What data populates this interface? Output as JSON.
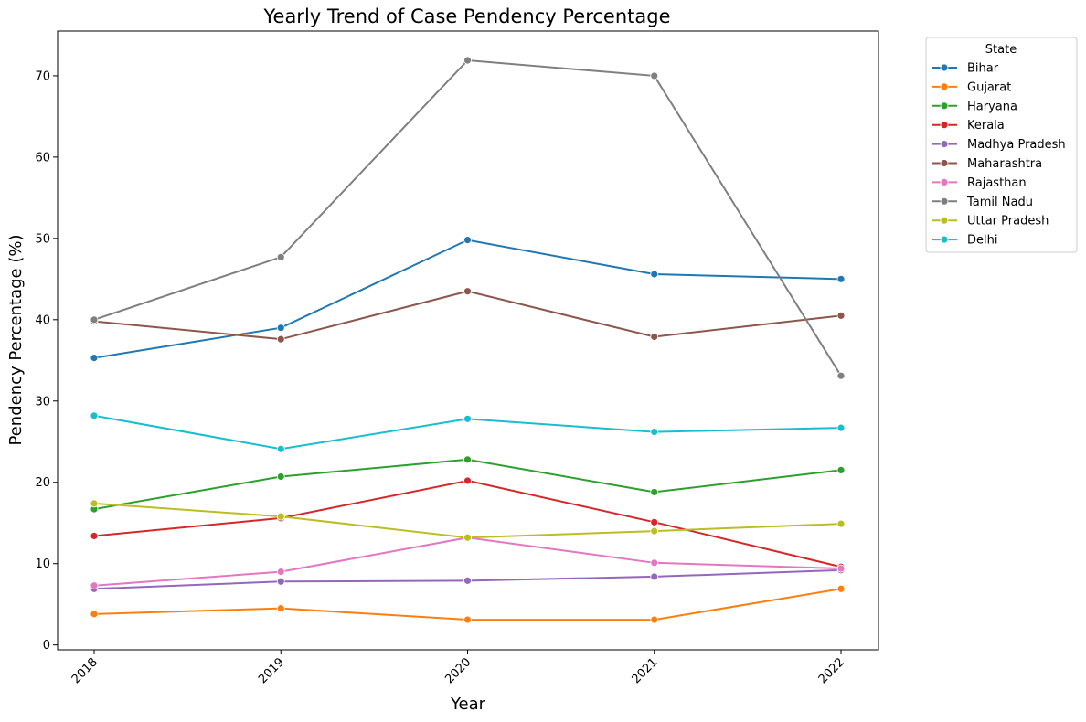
{
  "chart_data": {
    "type": "line",
    "title": "Yearly Trend of Case Pendency Percentage",
    "xlabel": "Year",
    "ylabel": "Pendency Percentage (%)",
    "categories": [
      "2018",
      "2019",
      "2020",
      "2021",
      "2022"
    ],
    "y_ticks": [
      0,
      10,
      20,
      30,
      40,
      50,
      60,
      70
    ],
    "ylim": [
      -0.6,
      75.5
    ],
    "grid": false,
    "legend_title": "State",
    "legend_position": "outside-top-right",
    "series": [
      {
        "name": "Bihar",
        "color": "#1f77b4",
        "values": [
          35.3,
          39.0,
          49.8,
          45.6,
          45.0
        ]
      },
      {
        "name": "Gujarat",
        "color": "#ff7f0e",
        "values": [
          3.8,
          4.5,
          3.1,
          3.1,
          6.9
        ]
      },
      {
        "name": "Haryana",
        "color": "#2ca02c",
        "values": [
          16.7,
          20.7,
          22.8,
          18.8,
          21.5
        ]
      },
      {
        "name": "Kerala",
        "color": "#d62728",
        "values": [
          13.4,
          15.6,
          20.2,
          15.1,
          9.6
        ]
      },
      {
        "name": "Madhya Pradesh",
        "color": "#9467bd",
        "values": [
          6.9,
          7.8,
          7.9,
          8.4,
          9.2
        ]
      },
      {
        "name": "Maharashtra",
        "color": "#8c564b",
        "values": [
          39.8,
          37.6,
          43.5,
          37.9,
          40.5
        ]
      },
      {
        "name": "Rajasthan",
        "color": "#e377c2",
        "values": [
          7.3,
          9.0,
          13.2,
          10.1,
          9.4
        ]
      },
      {
        "name": "Tamil Nadu",
        "color": "#7f7f7f",
        "values": [
          40.0,
          47.7,
          71.9,
          70.0,
          33.1
        ]
      },
      {
        "name": "Uttar Pradesh",
        "color": "#bcbd22",
        "values": [
          17.4,
          15.8,
          13.2,
          14.0,
          14.9
        ]
      },
      {
        "name": "Delhi",
        "color": "#17becf",
        "values": [
          28.2,
          24.1,
          27.8,
          26.2,
          26.7
        ]
      }
    ]
  }
}
